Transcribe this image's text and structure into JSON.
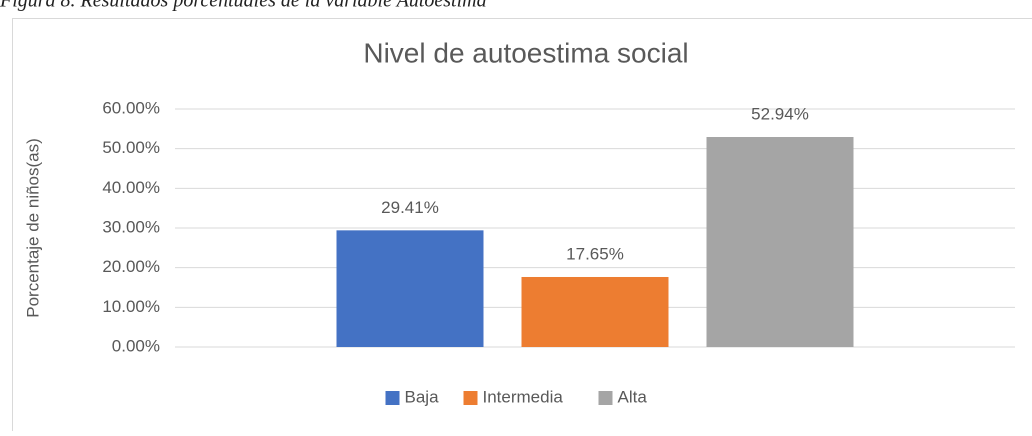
{
  "caption": "Figura 8. Resultados porcentuales de la variable Autoestima",
  "chart_data": {
    "type": "bar",
    "title": "Nivel de autoestima social",
    "y_label": "Porcentaje de niños(as)",
    "categories": [
      null
    ],
    "series": [
      {
        "name": "Baja",
        "color": "#4472c4",
        "values": [
          29.41
        ],
        "value_labels": [
          "29.41%"
        ]
      },
      {
        "name": "Intermedia",
        "color": "#ed7d31",
        "values": [
          17.65
        ],
        "value_labels": [
          "17.65%"
        ]
      },
      {
        "name": "Alta",
        "color": "#a5a5a5",
        "values": [
          52.94
        ],
        "value_labels": [
          "52.94%"
        ]
      }
    ],
    "ylim": [
      0,
      60
    ],
    "yticks": [
      {
        "value": 0,
        "label": "0.00%"
      },
      {
        "value": 10,
        "label": "10.00%"
      },
      {
        "value": 20,
        "label": "20.00%"
      },
      {
        "value": 30,
        "label": "30.00%"
      },
      {
        "value": 40,
        "label": "40.00%"
      },
      {
        "value": 50,
        "label": "50.00%"
      },
      {
        "value": 60,
        "label": "60.00%"
      }
    ],
    "grid": true,
    "legend": "bottom"
  }
}
